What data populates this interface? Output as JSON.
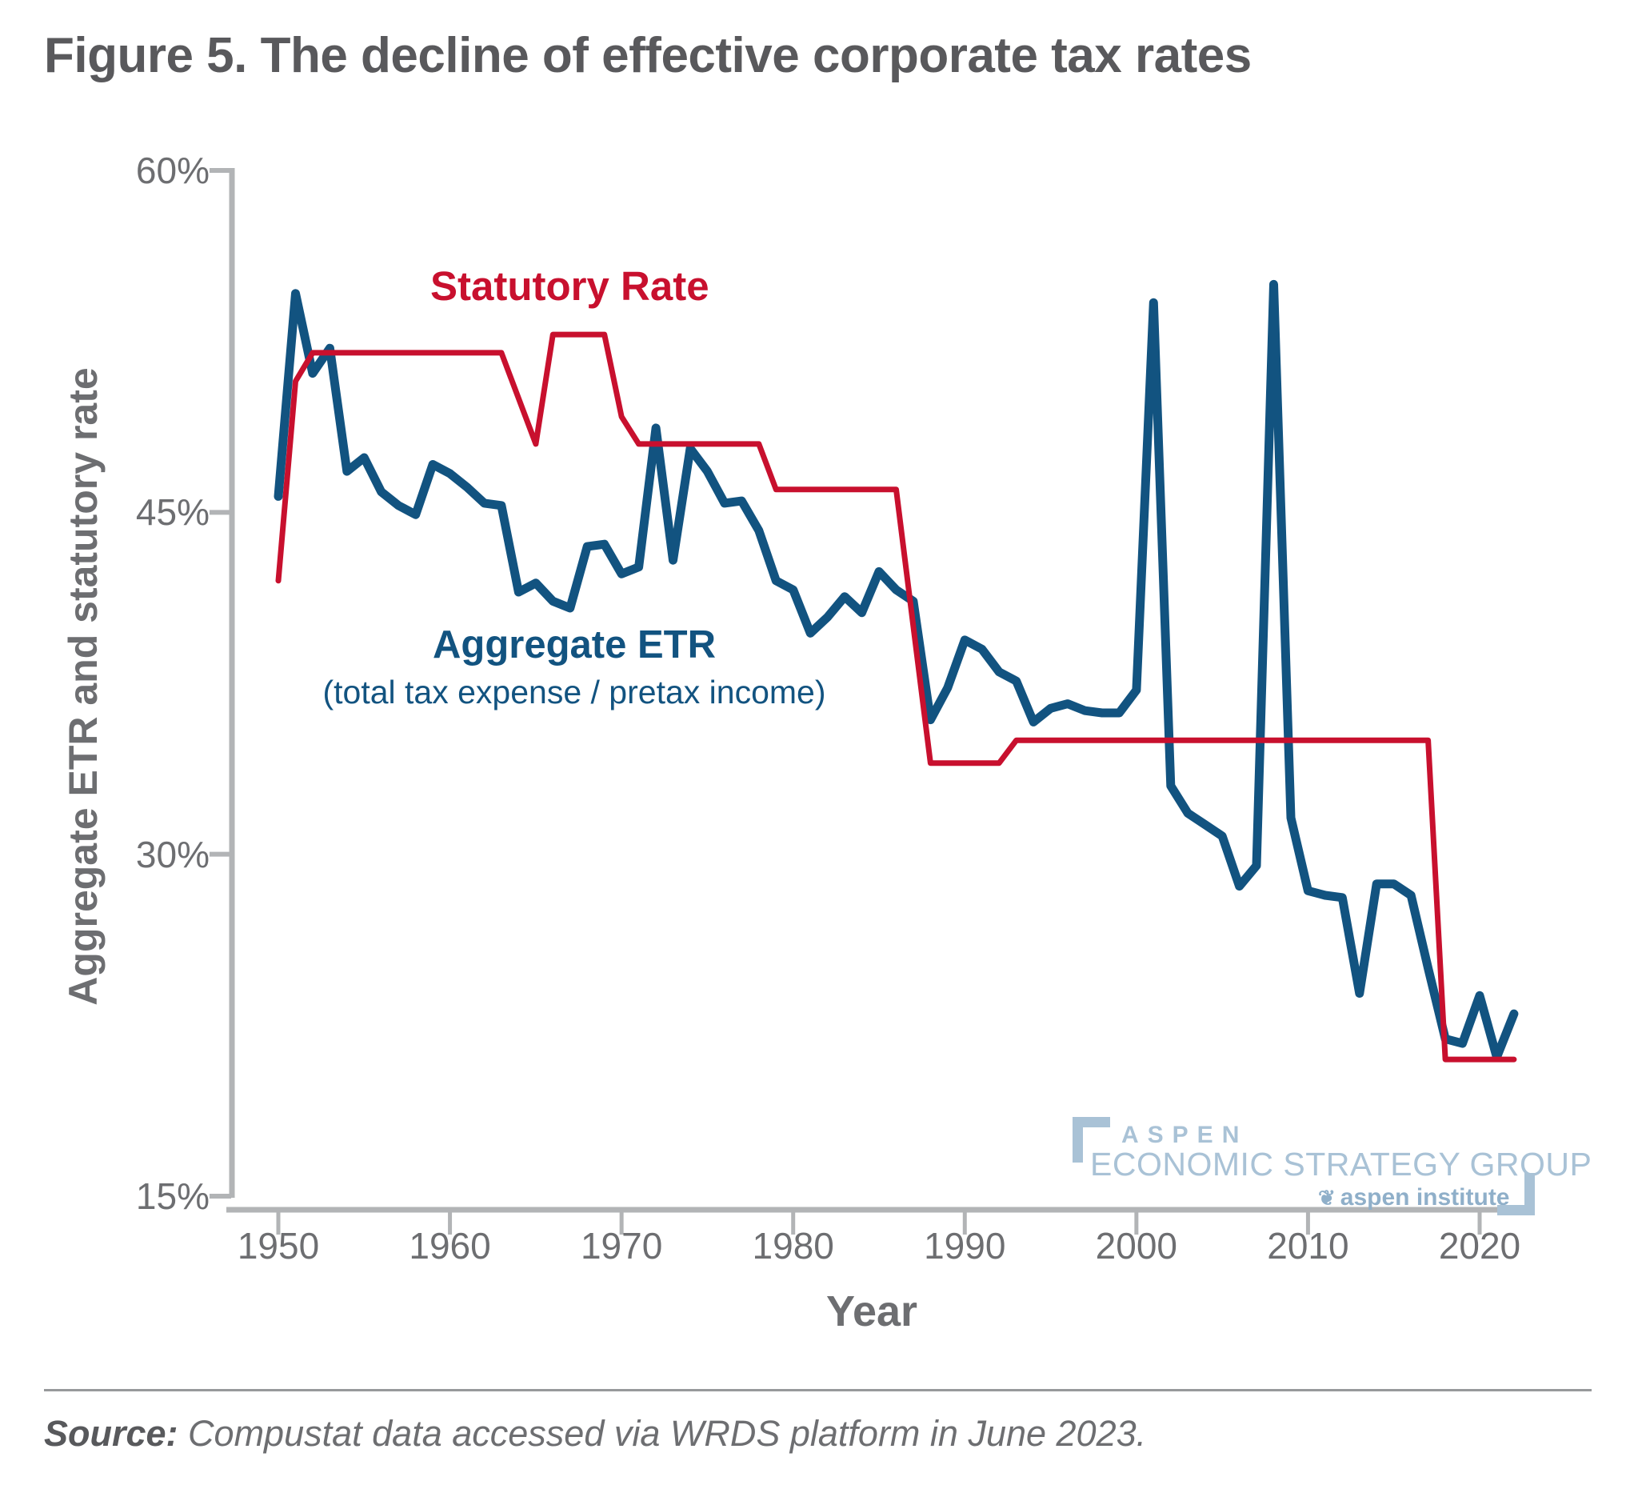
{
  "title": "Figure 5. The decline of effective corporate tax rates",
  "chart_data": {
    "type": "line",
    "title": "Figure 5. The decline of effective corporate tax rates",
    "xlabel": "Year",
    "ylabel": "Aggregate ETR and statutory rate",
    "xlim": [
      1950,
      2022
    ],
    "ylim": [
      15,
      60
    ],
    "grid": false,
    "legend_position": "inline-annotations",
    "x_ticks": [
      "1950",
      "1960",
      "1970",
      "1980",
      "1990",
      "2000",
      "2010",
      "2020"
    ],
    "y_ticks": [
      {
        "label": "60%",
        "value": 60
      },
      {
        "label": "45%",
        "value": 45
      },
      {
        "label": "30%",
        "value": 30
      },
      {
        "label": "15%",
        "value": 15
      }
    ],
    "year_start": 1950,
    "series": [
      {
        "name": "Aggregate ETR",
        "subtitle": "(total tax expense / pretax income)",
        "color": "#125380",
        "values": [
          45.7,
          54.6,
          51.1,
          52.2,
          46.8,
          47.4,
          45.9,
          45.3,
          44.9,
          47.1,
          46.7,
          46.1,
          45.4,
          45.3,
          41.5,
          41.9,
          41.1,
          40.8,
          43.5,
          43.6,
          42.3,
          42.6,
          48.7,
          42.9,
          47.8,
          46.8,
          45.4,
          45.5,
          44.2,
          42.0,
          41.6,
          39.7,
          40.4,
          41.3,
          40.6,
          42.4,
          41.6,
          41.1,
          35.9,
          37.3,
          39.4,
          39.0,
          38.0,
          37.6,
          35.8,
          36.4,
          36.6,
          36.3,
          36.2,
          36.2,
          37.2,
          54.2,
          33.0,
          31.8,
          31.3,
          30.8,
          28.6,
          29.5,
          55.0,
          31.6,
          28.4,
          28.2,
          28.1,
          23.9,
          28.7,
          28.7,
          28.2,
          25.0,
          21.9,
          21.7,
          23.8,
          21.1,
          23.0
        ]
      },
      {
        "name": "Statutory Rate",
        "color": "#c8102e",
        "values": [
          42,
          50.75,
          52,
          52,
          52,
          52,
          52,
          52,
          52,
          52,
          52,
          52,
          52,
          52,
          50,
          48,
          52.8,
          52.8,
          52.8,
          52.8,
          49.2,
          48,
          48,
          48,
          48,
          48,
          48,
          48,
          48,
          46,
          46,
          46,
          46,
          46,
          46,
          46,
          46,
          40,
          34,
          34,
          34,
          34,
          34,
          35,
          35,
          35,
          35,
          35,
          35,
          35,
          35,
          35,
          35,
          35,
          35,
          35,
          35,
          35,
          35,
          35,
          35,
          35,
          35,
          35,
          35,
          35,
          35,
          35,
          21,
          21,
          21,
          21,
          21
        ]
      }
    ]
  },
  "logo": {
    "aspen": "ASPEN",
    "group": "ECONOMIC STRATEGY GROUP",
    "leaf": "❦",
    "institute": "aspen institute"
  },
  "source": {
    "prefix": "Source:",
    "text": " Compustat data accessed via WRDS platform in June 2023."
  }
}
